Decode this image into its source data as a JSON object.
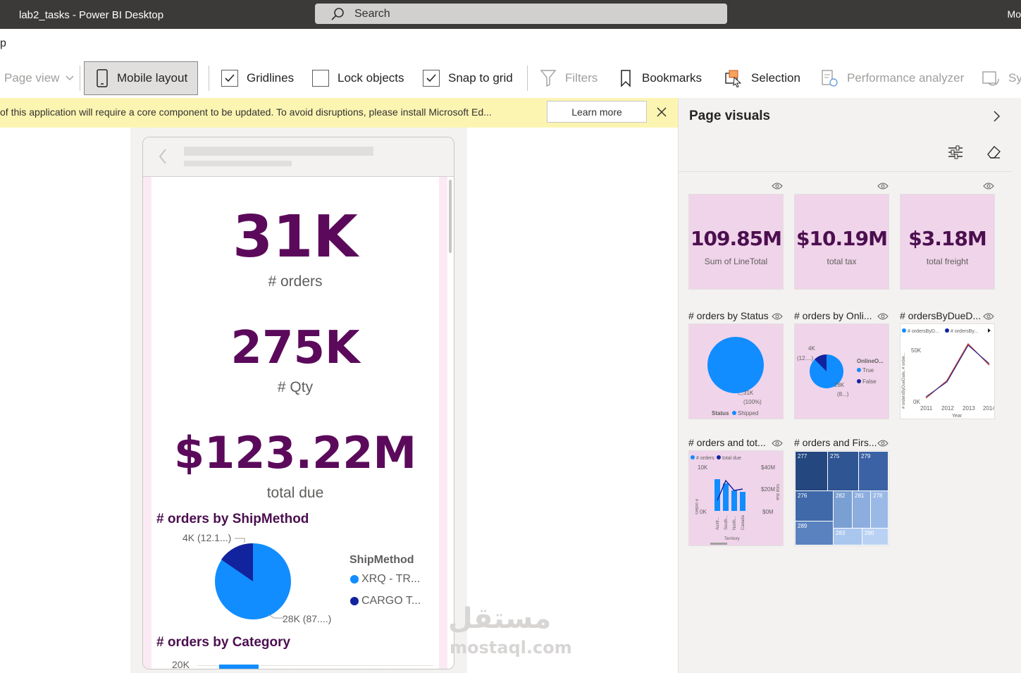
{
  "titlebar": {
    "title": "lab2_tasks - Power BI Desktop",
    "search": "Search",
    "user": "Mo"
  },
  "menu": {
    "help": "p"
  },
  "ribbon": {
    "page_view": "Page view",
    "mobile_layout": "Mobile layout",
    "gridlines": "Gridlines",
    "lock_objects": "Lock objects",
    "snap_to_grid": "Snap to grid",
    "filters": "Filters",
    "bookmarks": "Bookmarks",
    "selection": "Selection",
    "performance_analyzer": "Performance analyzer",
    "sync": "Sy"
  },
  "notice": {
    "text": "of this application will require a core component to be updated. To avoid disruptions, please install Microsoft Ed...",
    "learn_more": "Learn more"
  },
  "mobile": {
    "kpis": [
      {
        "value": "31K",
        "label": "# orders"
      },
      {
        "value": "275K",
        "label": "# Qty"
      },
      {
        "value": "$123.22M",
        "label": "total due"
      }
    ],
    "ship_chart": {
      "title": "# orders by ShipMethod",
      "legend_title": "ShipMethod",
      "legend": [
        "XRQ - TR...",
        "CARGO T..."
      ],
      "labels": [
        "4K (12.1...)",
        "28K (87....)"
      ]
    },
    "category_chart": {
      "title": "# orders by Category",
      "first_tick": "20K"
    }
  },
  "panel": {
    "title": "Page visuals",
    "cards": [
      {
        "value": "109.85M",
        "label": "Sum of LineTotal"
      },
      {
        "value": "$10.19M",
        "label": "total tax"
      },
      {
        "value": "$3.18M",
        "label": "total freight"
      }
    ],
    "visuals": [
      {
        "title": "# orders by Status"
      },
      {
        "title": "# orders by Onli..."
      },
      {
        "title": "# ordersByDueD..."
      },
      {
        "title": "# orders and tot..."
      },
      {
        "title": "# orders and Firs..."
      }
    ],
    "status_pie": {
      "label": "31K",
      "pct": "(100%)",
      "legend_title": "Status",
      "legend": "Shipped"
    },
    "online_pie": {
      "l1": "4K",
      "l2": "(12....)",
      "l3": "28K",
      "l4": "(8...)",
      "legend_title": "OnlineO...",
      "legend": [
        "True",
        "False"
      ]
    },
    "line_thumb": {
      "legend": [
        "# ordersByD...",
        "# ordersBy..."
      ],
      "y_ticks": [
        "50K",
        "0K"
      ],
      "x_ticks": [
        "2011",
        "2012",
        "2013",
        "2014"
      ],
      "x_label": "Year",
      "y_label": "# ordersByDueDate, # order..."
    },
    "combo_thumb": {
      "legend": [
        "# orders",
        "total due"
      ],
      "y_left": [
        "10K",
        "0K"
      ],
      "y_right": [
        "$40M",
        "$20M",
        "$0M"
      ],
      "x_ticks": [
        "Austr...",
        "South...",
        "North...",
        "Canada"
      ],
      "x_label": "Territory",
      "y_left_label": "# orders",
      "y_right_label": "total due"
    },
    "treemap": [
      "277",
      "275",
      "279",
      "276",
      "282",
      "281",
      "278",
      "289",
      "283",
      "290"
    ]
  },
  "watermark": {
    "arabic": "مستقل",
    "latin": "mostaql.com"
  },
  "colors": {
    "accent": "#118dff",
    "dark_blue": "#12239e",
    "kpi": "#5b0a5b",
    "pink_bg": "#f0d4ea",
    "notice": "#fcf5b2"
  }
}
